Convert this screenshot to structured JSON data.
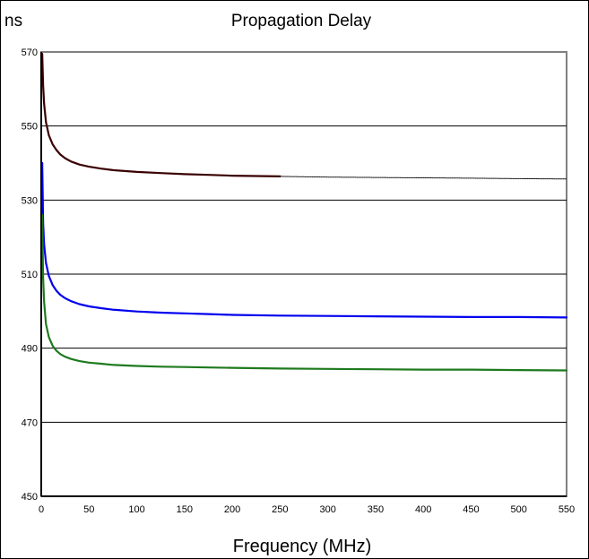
{
  "chart_data": {
    "type": "line",
    "title": "Propagation Delay",
    "xlabel": "Frequency (MHz)",
    "ylabel": "ns",
    "xlim": [
      0,
      550
    ],
    "ylim": [
      450,
      570
    ],
    "xticks": [
      0,
      50,
      100,
      150,
      200,
      250,
      300,
      350,
      400,
      450,
      500,
      550
    ],
    "yticks": [
      450,
      470,
      490,
      510,
      530,
      550,
      570
    ],
    "grid": "horizontal",
    "legend": "none",
    "series": [
      {
        "color": "#3a0000",
        "style": "solid",
        "x": [
          1,
          2,
          3,
          5,
          8,
          12,
          16,
          20,
          25,
          31.25,
          40,
          50,
          62.5,
          75,
          100,
          125,
          150,
          175,
          200,
          225,
          250
        ],
        "y": [
          569.5,
          561.0,
          556.0,
          551.0,
          547.5,
          545.0,
          543.5,
          542.3,
          541.3,
          540.4,
          539.6,
          539.0,
          538.5,
          538.1,
          537.6,
          537.3,
          537.0,
          536.8,
          536.6,
          536.5,
          536.4
        ]
      },
      {
        "color": "#000000",
        "style": "dotted",
        "x": [
          250,
          300,
          350,
          400,
          450,
          500,
          550
        ],
        "y": [
          536.4,
          536.2,
          536.1,
          536.0,
          535.9,
          535.8,
          535.7
        ]
      },
      {
        "color": "#0000ee",
        "style": "solid",
        "x": [
          1,
          2,
          3,
          5,
          8,
          12,
          16,
          20,
          25,
          31.25,
          40,
          50,
          62.5,
          75,
          100,
          125,
          150,
          175,
          200,
          250,
          300,
          350,
          400,
          450,
          500,
          550
        ],
        "y": [
          540.0,
          524.0,
          518.0,
          513.0,
          509.5,
          507.0,
          505.5,
          504.4,
          503.5,
          502.7,
          501.9,
          501.3,
          500.8,
          500.4,
          499.9,
          499.6,
          499.4,
          499.2,
          499.0,
          498.8,
          498.7,
          498.6,
          498.5,
          498.4,
          498.4,
          498.3
        ]
      },
      {
        "color": "#1e7a1e",
        "style": "solid",
        "x": [
          1,
          2,
          3,
          5,
          8,
          12,
          16,
          20,
          25,
          31.25,
          40,
          50,
          62.5,
          75,
          100,
          125,
          150,
          175,
          200,
          250,
          300,
          350,
          400,
          450,
          500,
          550
        ],
        "y": [
          526.0,
          509.0,
          502.5,
          496.5,
          493.0,
          490.6,
          489.3,
          488.4,
          487.7,
          487.1,
          486.5,
          486.1,
          485.8,
          485.5,
          485.2,
          485.0,
          484.9,
          484.8,
          484.7,
          484.5,
          484.4,
          484.3,
          484.2,
          484.2,
          484.1,
          484.0
        ]
      }
    ]
  }
}
